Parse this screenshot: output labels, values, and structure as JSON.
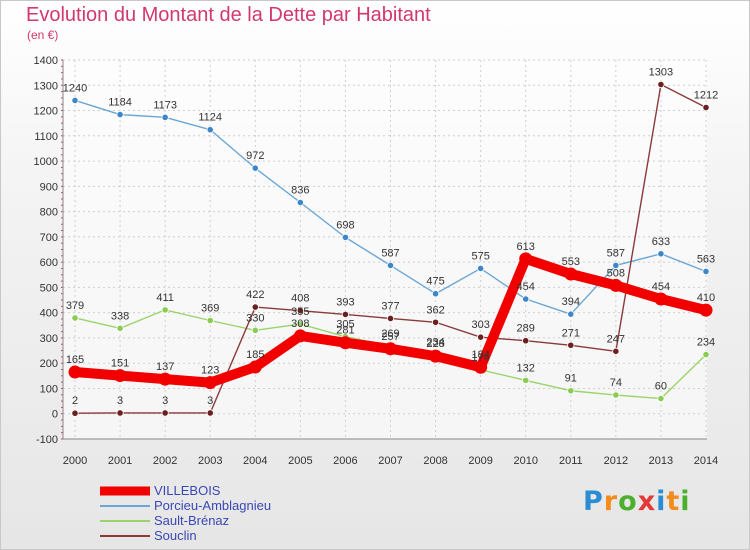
{
  "title": "Evolution du Montant de la Dette par Habitant",
  "subtitle": "(en €)",
  "brand": {
    "text": "Proxiti",
    "letter_colors": [
      "#2a8dd4",
      "#f28c1c",
      "#4caf2e",
      "#e53935",
      "#2a8dd4",
      "#f28c1c",
      "#4caf2e"
    ]
  },
  "chart_data": {
    "type": "line",
    "title": "Evolution du Montant de la Dette par Habitant",
    "subtitle": "(en €)",
    "xlabel": "",
    "ylabel": "",
    "x": [
      "2000",
      "2001",
      "2002",
      "2003",
      "2004",
      "2005",
      "2006",
      "2007",
      "2008",
      "2009",
      "2010",
      "2011",
      "2012",
      "2013",
      "2014"
    ],
    "ylim": [
      -100,
      1400
    ],
    "ytick_step": 100,
    "grid": true,
    "legend_position": "bottom-left",
    "series": [
      {
        "name": "VILLEBOIS",
        "color": "#f20000",
        "marker": "#f20000",
        "emphasis": "thick",
        "values": [
          165,
          151,
          137,
          123,
          185,
          308,
          281,
          257,
          228,
          184,
          613,
          553,
          508,
          454,
          410
        ],
        "labels": [
          "165",
          "151",
          "137",
          "123",
          "185",
          "308",
          "281",
          "257",
          "228",
          "184",
          "613",
          "553",
          "508",
          "454",
          "410"
        ]
      },
      {
        "name": "Porcieu-Amblagnieu",
        "color": "#6aa6d6",
        "marker": "#3b87c9",
        "emphasis": "thin",
        "values": [
          1240,
          1184,
          1173,
          1124,
          972,
          836,
          698,
          587,
          475,
          575,
          454,
          394,
          587,
          633,
          563
        ],
        "labels": [
          "1240",
          "1184",
          "1173",
          "1124",
          "972",
          "836",
          "698",
          "587",
          "475",
          "575",
          "454",
          "394",
          "587",
          "633",
          "563"
        ]
      },
      {
        "name": "Sault-Brénaz",
        "color": "#9ad36a",
        "marker": "#8acb52",
        "emphasis": "thin",
        "values": [
          379,
          338,
          411,
          369,
          330,
          355,
          305,
          269,
          234,
          174,
          132,
          91,
          74,
          60,
          234
        ],
        "labels": [
          "379",
          "338",
          "411",
          "369",
          "330",
          "355",
          "305",
          "269",
          "234",
          "174",
          "132",
          "91",
          "74",
          "60",
          "234"
        ]
      },
      {
        "name": "Souclin",
        "color": "#8b3a3a",
        "marker": "#6b1f1f",
        "emphasis": "thin",
        "values": [
          2,
          3,
          3,
          3,
          422,
          408,
          393,
          377,
          362,
          303,
          289,
          271,
          247,
          1303,
          1212
        ],
        "labels": [
          "2",
          "3",
          "3",
          "3",
          "422",
          "408",
          "393",
          "377",
          "362",
          "303",
          "289",
          "271",
          "247",
          "1303",
          "1212"
        ]
      }
    ]
  }
}
